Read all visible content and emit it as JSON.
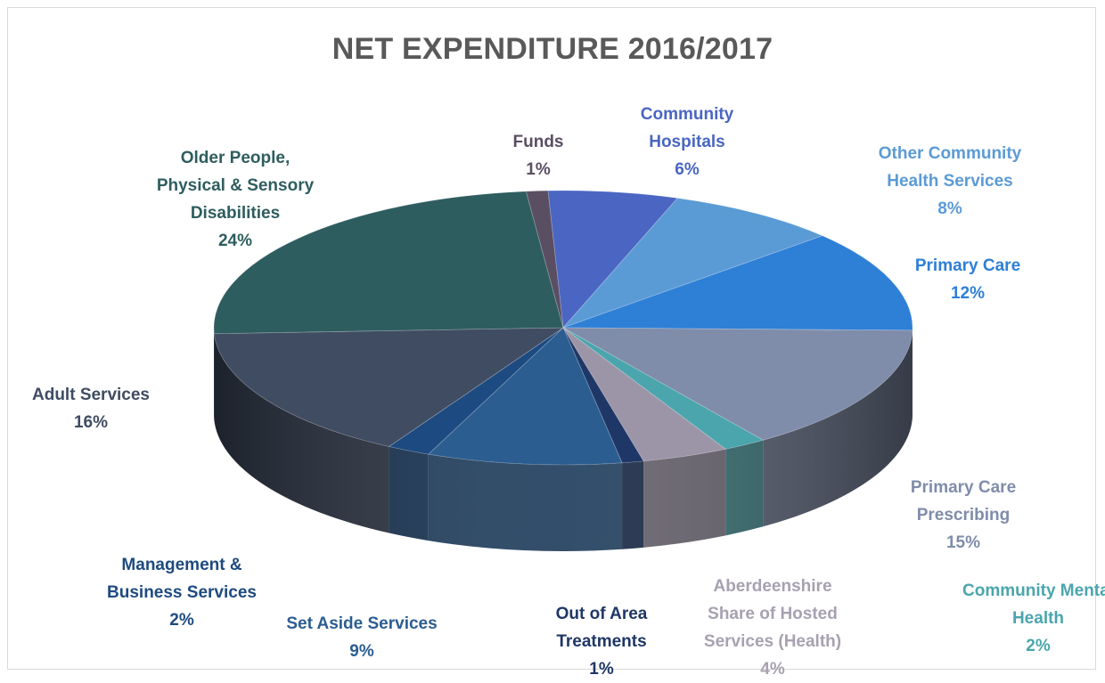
{
  "chart_data": {
    "type": "pie",
    "title": "NET EXPENDITURE 2016/2017",
    "slices": [
      {
        "label": "Community Hospitals",
        "value": 6,
        "pct": "6%",
        "color": "#4a66c2"
      },
      {
        "label": "Other Community Health Services",
        "value": 8,
        "pct": "8%",
        "color": "#5b9bd5"
      },
      {
        "label": "Primary Care",
        "value": 12,
        "pct": "12%",
        "color": "#2e7fd6"
      },
      {
        "label": "Primary Care Prescribing",
        "value": 15,
        "pct": "15%",
        "color": "#7f8daa"
      },
      {
        "label": "Community Mental Health",
        "value": 2,
        "pct": "2%",
        "color": "#4ba5ad"
      },
      {
        "label": "Aberdeenshire Share of Hosted Services (Health)",
        "value": 4,
        "pct": "4%",
        "color": "#9c95a8"
      },
      {
        "label": "Out of Area Treatments",
        "value": 1,
        "pct": "1%",
        "color": "#1f3766"
      },
      {
        "label": "Set Aside Services",
        "value": 9,
        "pct": "9%",
        "color": "#2b5d91"
      },
      {
        "label": "Management & Business Services",
        "value": 2,
        "pct": "2%",
        "color": "#1d4a80"
      },
      {
        "label": "Adult Services",
        "value": 16,
        "pct": "16%",
        "color": "#3f4c62"
      },
      {
        "label": "Older People, Physical & Sensory Disabilities",
        "value": 24,
        "pct": "24%",
        "color": "#2e5d5f"
      },
      {
        "label": "Funds",
        "value": 1,
        "pct": "1%",
        "color": "#5a4e62"
      }
    ]
  },
  "labels": [
    {
      "lines": [
        "Community",
        "Hospitals"
      ],
      "pct": "6%",
      "color": "#4a66c2"
    },
    {
      "lines": [
        "Other Community",
        "Health Services"
      ],
      "pct": "8%",
      "color": "#5b9bd5"
    },
    {
      "lines": [
        "Primary Care"
      ],
      "pct": "12%",
      "color": "#2e7fd6"
    },
    {
      "lines": [
        "Primary Care",
        "Prescribing"
      ],
      "pct": "15%",
      "color": "#7f8daa"
    },
    {
      "lines": [
        "Community Mental",
        "Health"
      ],
      "pct": "2%",
      "color": "#4ba5ad"
    },
    {
      "lines": [
        "Aberdeenshire",
        "Share of Hosted",
        "Services (Health)"
      ],
      "pct": "4%",
      "color": "#a7a1b1"
    },
    {
      "lines": [
        "Out of Area",
        "Treatments"
      ],
      "pct": "1%",
      "color": "#1f3766"
    },
    {
      "lines": [
        "Set Aside Services"
      ],
      "pct": "9%",
      "color": "#2b5d91"
    },
    {
      "lines": [
        "Management &",
        "Business Services"
      ],
      "pct": "2%",
      "color": "#1d4a80"
    },
    {
      "lines": [
        "Adult Services"
      ],
      "pct": "16%",
      "color": "#3f4c62"
    },
    {
      "lines": [
        "Older People,",
        "Physical & Sensory",
        "Disabilities"
      ],
      "pct": "24%",
      "color": "#2e5d5f"
    },
    {
      "lines": [
        "Funds"
      ],
      "pct": "1%",
      "color": "#5a4e62"
    }
  ]
}
